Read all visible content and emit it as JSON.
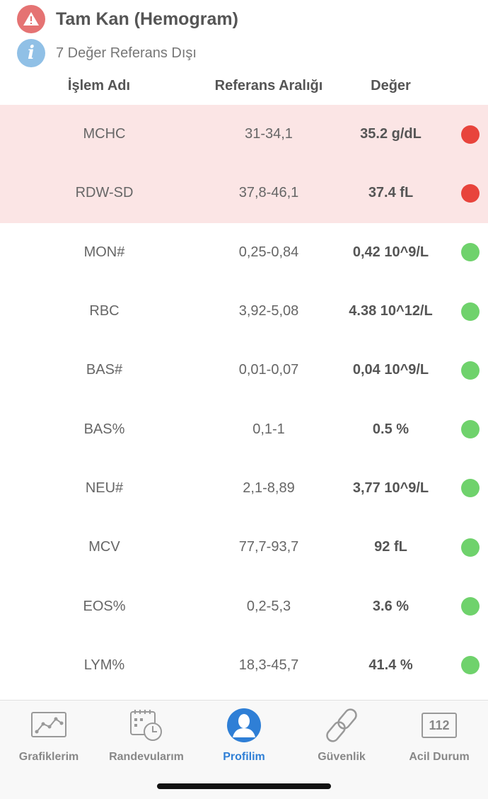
{
  "header": {
    "title": "Tam Kan (Hemogram)",
    "subtitle": "7 Değer Referans Dışı",
    "warning_icon": "warning-triangle-icon",
    "info_icon": "info-icon",
    "info_glyph": "i"
  },
  "columns": {
    "name": "İşlem Adı",
    "range": "Referans Aralığı",
    "value": "Değer"
  },
  "rows": [
    {
      "name": "MCHC",
      "range": "31-34,1",
      "value": "35.2 g/dL",
      "status": "out"
    },
    {
      "name": "RDW-SD",
      "range": "37,8-46,1",
      "value": "37.4 fL",
      "status": "out"
    },
    {
      "name": "MON#",
      "range": "0,25-0,84",
      "value": "0,42 10^9/L",
      "status": "ok"
    },
    {
      "name": "RBC",
      "range": "3,92-5,08",
      "value": "4.38 10^12/L",
      "status": "ok"
    },
    {
      "name": "BAS#",
      "range": "0,01-0,07",
      "value": "0,04 10^9/L",
      "status": "ok"
    },
    {
      "name": "BAS%",
      "range": "0,1-1",
      "value": "0.5 %",
      "status": "ok"
    },
    {
      "name": "NEU#",
      "range": "2,1-8,89",
      "value": "3,77 10^9/L",
      "status": "ok"
    },
    {
      "name": "MCV",
      "range": "77,7-93,7",
      "value": "92 fL",
      "status": "ok"
    },
    {
      "name": "EOS%",
      "range": "0,2-5,3",
      "value": "3.6 %",
      "status": "ok"
    },
    {
      "name": "LYM%",
      "range": "18,3-45,7",
      "value": "41.4 %",
      "status": "ok"
    }
  ],
  "tabbar": {
    "active": "profilim",
    "tabs": [
      {
        "id": "grafiklerim",
        "label": "Grafiklerim",
        "icon": "line-chart-icon"
      },
      {
        "id": "randevularim",
        "label": "Randevularım",
        "icon": "calendar-clock-icon"
      },
      {
        "id": "profilim",
        "label": "Profilim",
        "icon": "user-icon"
      },
      {
        "id": "guvenlik",
        "label": "Güvenlik",
        "icon": "link-icon"
      },
      {
        "id": "acil",
        "label": "Acil Durum",
        "icon": "emergency-112-icon",
        "icon_text": "112"
      }
    ]
  },
  "colors": {
    "alert_row_bg": "#fbe5e5",
    "status_out": "#e8443c",
    "status_ok": "#6fd26c",
    "accent": "#2f7fd6",
    "warning": "#e57373",
    "info": "#90c0e6"
  }
}
